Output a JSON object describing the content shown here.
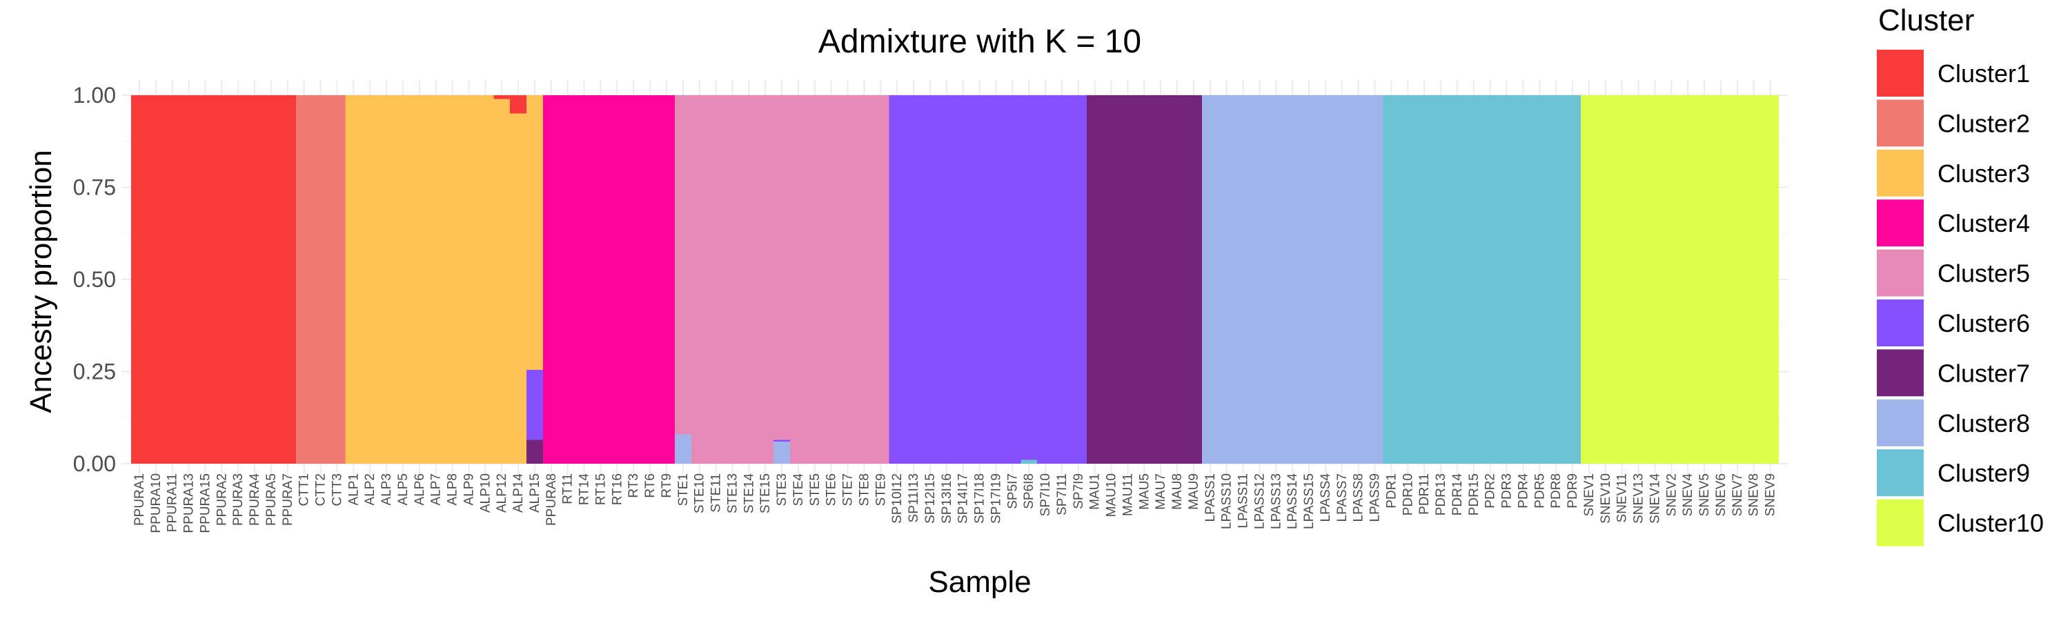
{
  "chart_data": {
    "type": "bar",
    "stacked": true,
    "title": "Admixture with K = 10",
    "xlabel": "Sample",
    "ylabel": "Ancestry proportion",
    "ylim": [
      0,
      1
    ],
    "yticks": [
      "0.00",
      "0.25",
      "0.50",
      "0.75",
      "1.00"
    ],
    "grid": true,
    "legend_title": "Cluster",
    "legend_position": "right",
    "clusters": [
      "Cluster1",
      "Cluster2",
      "Cluster3",
      "Cluster4",
      "Cluster5",
      "Cluster6",
      "Cluster7",
      "Cluster8",
      "Cluster9",
      "Cluster10"
    ],
    "colors": [
      "#F8393A",
      "#F07A71",
      "#FFC255",
      "#FF039A",
      "#E68BB7",
      "#8650FF",
      "#74257B",
      "#9FB4EB",
      "#6CC3D5",
      "#DDFF49"
    ],
    "samples": [
      "PPURA1",
      "PPURA10",
      "PPURA11",
      "PPURA13",
      "PPURA15",
      "PPURA2",
      "PPURA3",
      "PPURA4",
      "PPURA5",
      "PPURA7",
      "CTT1",
      "CTT2",
      "CTT3",
      "ALP1",
      "ALP2",
      "ALP3",
      "ALP5",
      "ALP6",
      "ALP7",
      "ALP8",
      "ALP9",
      "ALP10",
      "ALP12",
      "ALP14",
      "ALP15",
      "PPURA8",
      "RT11",
      "RT14",
      "RT15",
      "RT16",
      "RT3",
      "RT6",
      "RT9",
      "STE1",
      "STE10",
      "STE11",
      "STE13",
      "STE14",
      "STE15",
      "STE3",
      "STE4",
      "STE5",
      "STE6",
      "STE7",
      "STE8",
      "STE9",
      "SP10I12",
      "SP11I13",
      "SP12I15",
      "SP13I16",
      "SP14I17",
      "SP17I18",
      "SP17I19",
      "SP5I7",
      "SP6I8",
      "SP7I10",
      "SP7I11",
      "SP7I9",
      "MAU1",
      "MAU10",
      "MAU11",
      "MAU5",
      "MAU7",
      "MAU8",
      "MAU9",
      "LPASS1",
      "LPASS10",
      "LPASS11",
      "LPASS12",
      "LPASS13",
      "LPASS14",
      "LPASS15",
      "LPASS4",
      "LPASS7",
      "LPASS8",
      "LPASS9",
      "PDR1",
      "PDR10",
      "PDR11",
      "PDR13",
      "PDR14",
      "PDR15",
      "PDR2",
      "PDR3",
      "PDR4",
      "PDR5",
      "PDR8",
      "PDR9",
      "SNEV1",
      "SNEV10",
      "SNEV11",
      "SNEV13",
      "SNEV14",
      "SNEV2",
      "SNEV4",
      "SNEV5",
      "SNEV6",
      "SNEV7",
      "SNEV8",
      "SNEV9"
    ],
    "group_sizes": [
      10,
      3,
      12,
      8,
      13,
      12,
      7,
      11,
      12,
      12
    ],
    "group_cluster": [
      0,
      1,
      2,
      3,
      4,
      5,
      6,
      7,
      8,
      9
    ],
    "overrides": {
      "ALP12": [
        0.01,
        0,
        0.99,
        0,
        0,
        0,
        0,
        0,
        0,
        0
      ],
      "ALP14": [
        0.05,
        0,
        0.95,
        0,
        0,
        0,
        0,
        0,
        0,
        0
      ],
      "ALP15": [
        0,
        0,
        0.745,
        0,
        0,
        0.19,
        0.065,
        0,
        0,
        0
      ],
      "STE1": [
        0,
        0,
        0,
        0,
        0.92,
        0,
        0,
        0.08,
        0,
        0
      ],
      "STE3": [
        0,
        0,
        0,
        0,
        0.935,
        0.005,
        0,
        0.06,
        0,
        0
      ],
      "SP6I8": [
        0,
        0,
        0,
        0,
        0,
        0.99,
        0,
        0,
        0.01,
        0
      ]
    }
  }
}
